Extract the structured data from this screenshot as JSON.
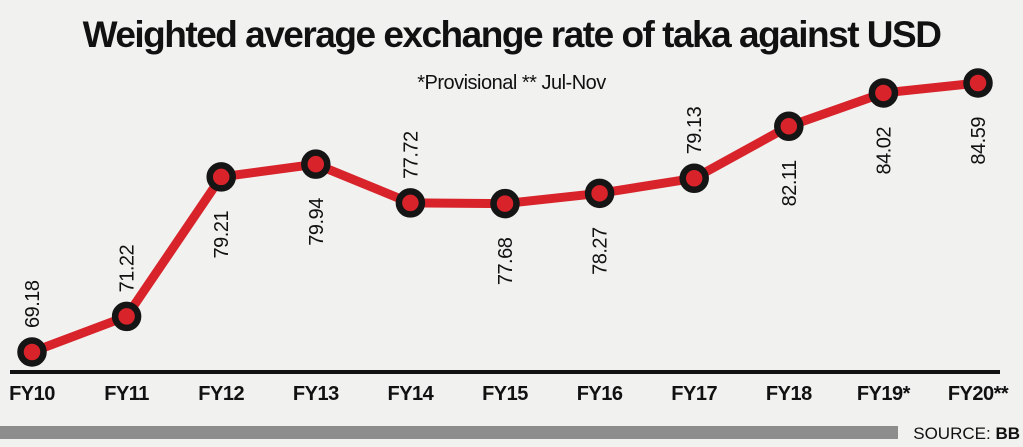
{
  "title": "Weighted average exchange rate of taka against USD",
  "subtitle": "*Provisional ** Jul-Nov",
  "source": {
    "label": "SOURCE: ",
    "value": "BB"
  },
  "colors": {
    "background": "#f1f1ef",
    "line": "#d8232a",
    "marker_fill": "#d8232a",
    "marker_ring": "#151515",
    "axis": "#111111",
    "text": "#111111",
    "source_bar": "#8d8d8d"
  },
  "chart_data": {
    "type": "line",
    "title": "Weighted average exchange rate of taka against USD",
    "subtitle": "*Provisional ** Jul-Nov",
    "xlabel": "",
    "ylabel": "",
    "categories": [
      "FY10",
      "FY11",
      "FY12",
      "FY13",
      "FY14",
      "FY15",
      "FY16",
      "FY17",
      "FY18",
      "FY19*",
      "FY20**"
    ],
    "values": [
      69.18,
      71.22,
      79.21,
      79.94,
      77.72,
      77.68,
      78.27,
      79.13,
      82.11,
      84.02,
      84.59
    ],
    "value_label_position": [
      "above",
      "above",
      "below",
      "below",
      "above",
      "below",
      "below",
      "above",
      "below",
      "below",
      "below"
    ],
    "ylim": [
      69.18,
      84.59
    ],
    "grid": false,
    "legend": false,
    "marker": "circle-ring",
    "source": "BB"
  }
}
